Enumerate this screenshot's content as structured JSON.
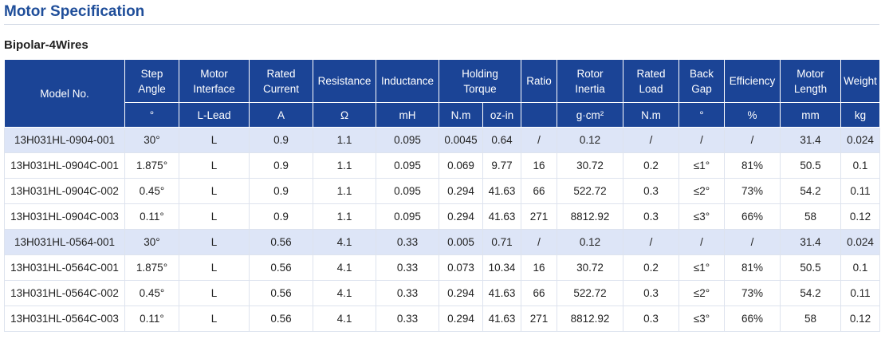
{
  "page": {
    "title": "Motor Specification",
    "section": "Bipolar-4Wires"
  },
  "table": {
    "header": {
      "model": "Model No.",
      "step_angle": [
        "Step",
        "Angle"
      ],
      "motor_interface": [
        "Motor",
        "Interface"
      ],
      "rated_current": [
        "Rated",
        "Current"
      ],
      "resistance": "Resistance",
      "inductance": "Inductance",
      "holding_torque": [
        "Holding",
        "Torque"
      ],
      "ratio": "Ratio",
      "rotor_inertia": [
        "Rotor",
        "Inertia"
      ],
      "rated_load": [
        "Rated",
        "Load"
      ],
      "back_gap": [
        "Back",
        "Gap"
      ],
      "efficiency": "Efficiency",
      "motor_length": [
        "Motor",
        "Length"
      ],
      "weight": "Weight"
    },
    "units": [
      "°",
      "L-Lead",
      "A",
      "Ω",
      "mH",
      "N.m",
      "oz-in",
      "g·cm²",
      "N.m",
      "°",
      "%",
      "mm",
      "kg"
    ],
    "rows": [
      [
        "13H031HL-0904-001",
        "30°",
        "L",
        "0.9",
        "1.1",
        "0.095",
        "0.0045",
        "0.64",
        "/",
        "0.12",
        "/",
        "/",
        "/",
        "31.4",
        "0.024"
      ],
      [
        "13H031HL-0904C-001",
        "1.875°",
        "L",
        "0.9",
        "1.1",
        "0.095",
        "0.069",
        "9.77",
        "16",
        "30.72",
        "0.2",
        "≤1°",
        "81%",
        "50.5",
        "0.1"
      ],
      [
        "13H031HL-0904C-002",
        "0.45°",
        "L",
        "0.9",
        "1.1",
        "0.095",
        "0.294",
        "41.63",
        "66",
        "522.72",
        "0.3",
        "≤2°",
        "73%",
        "54.2",
        "0.11"
      ],
      [
        "13H031HL-0904C-003",
        "0.11°",
        "L",
        "0.9",
        "1.1",
        "0.095",
        "0.294",
        "41.63",
        "271",
        "8812.92",
        "0.3",
        "≤3°",
        "66%",
        "58",
        "0.12"
      ],
      [
        "13H031HL-0564-001",
        "30°",
        "L",
        "0.56",
        "4.1",
        "0.33",
        "0.005",
        "0.71",
        "/",
        "0.12",
        "/",
        "/",
        "/",
        "31.4",
        "0.024"
      ],
      [
        "13H031HL-0564C-001",
        "1.875°",
        "L",
        "0.56",
        "4.1",
        "0.33",
        "0.073",
        "10.34",
        "16",
        "30.72",
        "0.2",
        "≤1°",
        "81%",
        "50.5",
        "0.1"
      ],
      [
        "13H031HL-0564C-002",
        "0.45°",
        "L",
        "0.56",
        "4.1",
        "0.33",
        "0.294",
        "41.63",
        "66",
        "522.72",
        "0.3",
        "≤2°",
        "73%",
        "54.2",
        "0.11"
      ],
      [
        "13H031HL-0564C-003",
        "0.11°",
        "L",
        "0.56",
        "4.1",
        "0.33",
        "0.294",
        "41.63",
        "271",
        "8812.92",
        "0.3",
        "≤3°",
        "66%",
        "58",
        "0.12"
      ]
    ],
    "highlight_rows": [
      0,
      4
    ],
    "colors": {
      "header_bg": "#1b4496",
      "header_text": "#ffffff",
      "highlight_row": "#dde5f7",
      "title": "#1f4e9a"
    }
  }
}
